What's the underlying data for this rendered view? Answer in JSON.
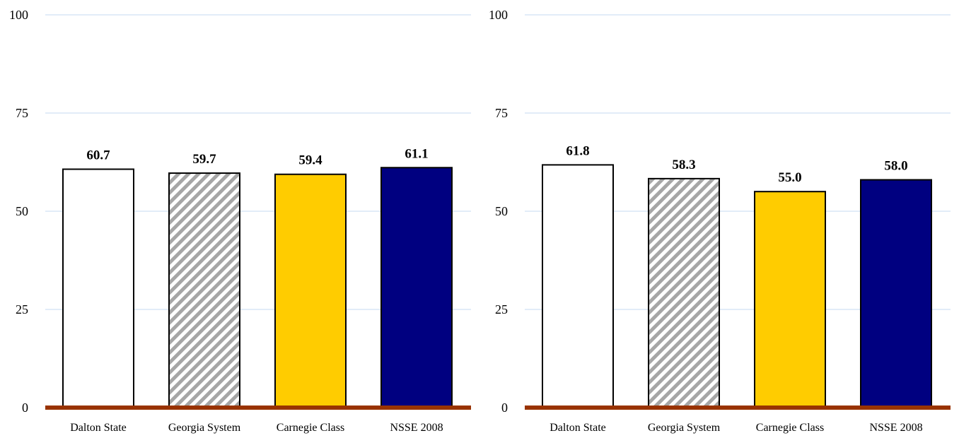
{
  "chart_data": [
    {
      "type": "bar",
      "categories": [
        "Dalton State",
        "Georgia System",
        "Carnegie Class",
        "NSSE 2008"
      ],
      "values": [
        60.7,
        59.7,
        59.4,
        61.1
      ],
      "value_labels": [
        "60.7",
        "59.7",
        "59.4",
        "61.1"
      ],
      "ylim": [
        0,
        100
      ],
      "yticks": [
        "0",
        "25",
        "50",
        "75",
        "100"
      ],
      "grid": true,
      "legend": "none"
    },
    {
      "type": "bar",
      "categories": [
        "Dalton State",
        "Georgia System",
        "Carnegie Class",
        "NSSE 2008"
      ],
      "values": [
        61.8,
        58.3,
        55.0,
        58.0
      ],
      "value_labels": [
        "61.8",
        "58.3",
        "55.0",
        "58.0"
      ],
      "ylim": [
        0,
        100
      ],
      "yticks": [
        "0",
        "25",
        "50",
        "75",
        "100"
      ],
      "grid": true,
      "legend": "none"
    }
  ],
  "colors": {
    "bar_fills": [
      "#ffffff",
      "hatch",
      "#ffcc00",
      "#000080"
    ],
    "hatch_stripe": "#a6a6a6",
    "bar_stroke": "#000000",
    "gridline": "#c6d9f1",
    "baseline": "#993300"
  }
}
